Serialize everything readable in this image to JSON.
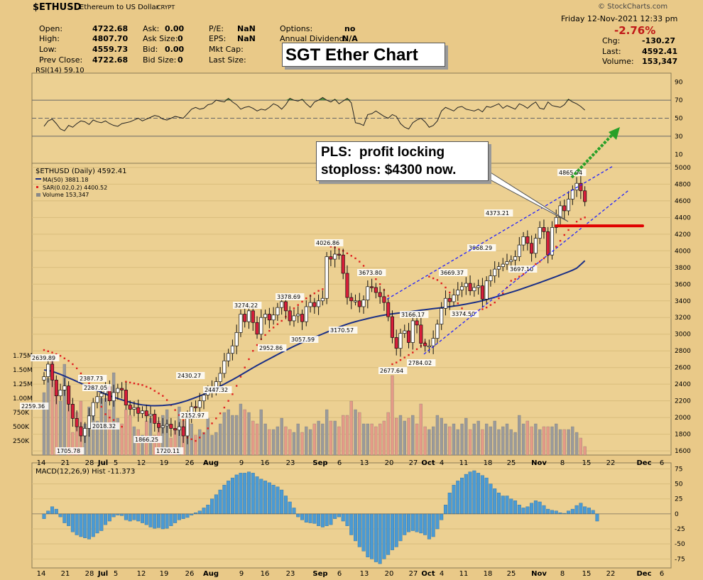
{
  "header": {
    "symbol": "$ETHUSD",
    "name": "Ethereum to US Dollar",
    "exchange": "CRYPT",
    "brand": "© StockCharts.com",
    "date_line": "Friday  12-Nov-2021  12:33 pm",
    "quote": {
      "open_label": "Open:",
      "open": "4722.68",
      "high_label": "High:",
      "high": "4807.70",
      "low_label": "Low:",
      "low": "4559.73",
      "prev_label": "Prev Close:",
      "prev": "4722.68",
      "ask_label": "Ask:",
      "ask": "0.00",
      "asksize_label": "Ask Size:",
      "asksize": "0",
      "bid_label": "Bid:",
      "bid": "0.00",
      "bidsize_label": "Bid Size:",
      "bidsize": "0",
      "pe_label": "P/E:",
      "pe": "NaN",
      "eps_label": "EPS:",
      "eps": "NaN",
      "mktcap_label": "Mkt Cap:",
      "lastsize_label": "Last Size:",
      "options_label": "Options:",
      "options": "no",
      "div_label": "Annual Dividend:",
      "div": "N/A",
      "pct_change": "-2.76%",
      "chg_label": "Chg:",
      "chg": "-130.27",
      "last_label": "Last:",
      "last": "4592.41",
      "vol_label": "Volume:",
      "vol": "153,347"
    }
  },
  "overlay": {
    "title": "SGT Ether Chart",
    "note": "PLS:  profit locking\nstoploss: $4300 now."
  },
  "colors": {
    "background": "#e9c988",
    "up_candle": "#ffffff",
    "down_candle": "#d81e3a",
    "ma": "#1a2f86",
    "sar": "#e02020",
    "volume_up": "#9a9a9a",
    "volume_down": "#e59a87",
    "macd_hist": "#4a9ad4",
    "rsi_fill": "#4f8a38",
    "channel": "#2020ff",
    "target_arrow": "#28a028",
    "stop_line": "#e00000"
  },
  "chart_data": [
    {
      "type": "line",
      "title": "RSI(14) 59.10",
      "yticks": [
        10,
        30,
        50,
        70,
        90
      ],
      "ylim": [
        0,
        100
      ],
      "reference_lines": [
        30,
        50,
        70
      ],
      "series": [
        {
          "name": "RSI(14)",
          "last": 59.1,
          "values": [
            41,
            47,
            49,
            44,
            38,
            36,
            42,
            40,
            44,
            47,
            46,
            43,
            48,
            46,
            45,
            47,
            44,
            42,
            41,
            44,
            45,
            46,
            48,
            50,
            47,
            49,
            51,
            53,
            52,
            49,
            48,
            50,
            52,
            51,
            50,
            55,
            60,
            62,
            60,
            61,
            65,
            66,
            70,
            69,
            68,
            72,
            68,
            65,
            60,
            62,
            63,
            61,
            58,
            60,
            59,
            62,
            66,
            64,
            60,
            65,
            72,
            70,
            69,
            71,
            66,
            62,
            68,
            70,
            73,
            70,
            68,
            71,
            66,
            69,
            72,
            67,
            45,
            44,
            42,
            54,
            55,
            58,
            55,
            52,
            50,
            54,
            52,
            44,
            40,
            38,
            45,
            48,
            50,
            46,
            40,
            42,
            47,
            58,
            62,
            60,
            58,
            62,
            63,
            60,
            59,
            58,
            60,
            57,
            63,
            62,
            64,
            66,
            61,
            64,
            62,
            60,
            66,
            64,
            61,
            65,
            68,
            61,
            60,
            68,
            64,
            63,
            62,
            65,
            71,
            68,
            66,
            63,
            59
          ]
        }
      ]
    },
    {
      "type": "line",
      "title": "$ETHUSD (Daily) 4592.41",
      "x_tick_labels": [
        "14",
        "21",
        "28",
        "Jul",
        "5",
        "12",
        "19",
        "26",
        "Aug",
        "9",
        "16",
        "23",
        "Sep",
        "6",
        "13",
        "20",
        "27",
        "Oct",
        "4",
        "11",
        "18",
        "25",
        "Nov",
        "8",
        "15",
        "22",
        "Dec",
        "6"
      ],
      "yticks": [
        1600,
        1800,
        2000,
        2200,
        2400,
        2600,
        2800,
        3000,
        3200,
        3400,
        3600,
        3800,
        4000,
        4200,
        4400,
        4600,
        4800,
        5000
      ],
      "ylim": [
        1550,
        5050
      ],
      "volume_ticks": [
        "250K",
        "500K",
        "750K",
        "1.00M",
        "1.25M",
        "1.50M",
        "1.75M"
      ],
      "legend": [
        "$ETHUSD (Daily) 4592.41",
        "MA(50) 3881.18",
        "SAR(0.02,0.2) 4400.52",
        "Volume 153,347"
      ],
      "series": [
        {
          "name": "$ETHUSD (Daily) close",
          "values": [
            2490,
            2640,
            2450,
            2260,
            2330,
            2380,
            2160,
            1990,
            1890,
            1780,
            1870,
            2020,
            2180,
            2250,
            2290,
            2370,
            2200,
            2300,
            2350,
            2330,
            2150,
            2100,
            2120,
            2050,
            2080,
            2020,
            2040,
            1930,
            1880,
            1900,
            1920,
            1870,
            1850,
            1890,
            1780,
            1990,
            2130,
            2120,
            2200,
            2270,
            2310,
            2350,
            2430,
            2530,
            2680,
            2770,
            2860,
            3020,
            3240,
            3150,
            3280,
            3140,
            3000,
            3200,
            3240,
            3170,
            3230,
            3320,
            3390,
            3280,
            3160,
            3220,
            3240,
            3150,
            3330,
            3380,
            3330,
            3400,
            3430,
            3930,
            3900,
            3960,
            3950,
            3730,
            3440,
            3400,
            3400,
            3330,
            3410,
            3570,
            3560,
            3500,
            3450,
            3380,
            3210,
            2960,
            2830,
            3010,
            3040,
            2900,
            3160,
            3110,
            2890,
            2860,
            2860,
            2950,
            3120,
            3310,
            3430,
            3390,
            3470,
            3530,
            3570,
            3610,
            3520,
            3560,
            3580,
            3420,
            3640,
            3700,
            3780,
            3810,
            3840,
            3870,
            3890,
            3930,
            4070,
            4170,
            4090,
            3970,
            4150,
            4280,
            4230,
            3950,
            4280,
            4400,
            4540,
            4480,
            4620,
            4730,
            4810,
            4720,
            4590
          ]
        },
        {
          "name": "MA(50)",
          "last": 3881.18,
          "values": [
            2570,
            2566,
            2553,
            2536,
            2518,
            2498,
            2476,
            2455,
            2433,
            2411,
            2388,
            2368,
            2346,
            2324,
            2302,
            2281,
            2262,
            2245,
            2229,
            2213,
            2198,
            2184,
            2171,
            2160,
            2152,
            2147,
            2143,
            2142,
            2143,
            2145,
            2149,
            2154,
            2163,
            2175,
            2189,
            2204,
            2222,
            2240,
            2259,
            2279,
            2302,
            2325,
            2350,
            2376,
            2402,
            2428,
            2454,
            2481,
            2510,
            2539,
            2568,
            2597,
            2625,
            2652,
            2678,
            2704,
            2730,
            2756,
            2782,
            2806,
            2831,
            2855,
            2878,
            2900,
            2921,
            2942,
            2963,
            2983,
            3003,
            3024,
            3044,
            3065,
            3086,
            3104,
            3121,
            3136,
            3150,
            3163,
            3175,
            3187,
            3199,
            3210,
            3220,
            3229,
            3237,
            3244,
            3250,
            3256,
            3262,
            3268,
            3275,
            3281,
            3288,
            3294,
            3300,
            3306,
            3312,
            3318,
            3324,
            3330,
            3337,
            3344,
            3352,
            3361,
            3370,
            3380,
            3390,
            3402,
            3415,
            3429,
            3443,
            3458,
            3473,
            3488,
            3503,
            3518,
            3534,
            3551,
            3568,
            3585,
            3602,
            3619,
            3637,
            3655,
            3673,
            3691,
            3710,
            3729,
            3748,
            3768,
            3791,
            3835,
            3881
          ]
        },
        {
          "name": "SAR(0.02,0.2)",
          "last": 4400.52,
          "values": [
            2810,
            2795,
            2780,
            2760,
            2740,
            2710,
            2680,
            2640,
            2590,
            2530,
            2470,
            2410,
            2350,
            2240,
            2130,
            2040,
            2000,
            1970,
            1930,
            1890,
            2430,
            2420,
            2410,
            2400,
            2390,
            2370,
            2350,
            2320,
            2290,
            2260,
            2210,
            2150,
            2090,
            2030,
            1970,
            1760,
            1740,
            1720,
            1760,
            1810,
            1870,
            1930,
            1990,
            2050,
            2120,
            2200,
            2280,
            2380,
            2490,
            2600,
            2700,
            2800,
            2870,
            2940,
            2990,
            3040,
            3080,
            3120,
            3160,
            3210,
            3260,
            3310,
            3350,
            3390,
            3430,
            3460,
            3490,
            3520,
            3540,
            3560,
            4050,
            4040,
            4020,
            4000,
            3970,
            3940,
            3910,
            3870,
            3820,
            3770,
            3720,
            3660,
            3600,
            3530,
            3460,
            2640,
            2660,
            2690,
            2720,
            2750,
            2780,
            2820,
            2860,
            2900,
            3690,
            3670,
            3650,
            3610,
            3560,
            3500,
            3440,
            3370,
            3310,
            3270,
            3260,
            3270,
            3280,
            3300,
            3320,
            3350,
            3380,
            3430,
            3490,
            3560,
            3640,
            3660,
            3690,
            3720,
            3760,
            3800,
            3840,
            3870,
            3910,
            3950,
            3990,
            4050,
            4120,
            4190,
            4250,
            4300,
            4350,
            4380,
            4400
          ]
        },
        {
          "name": "Volume",
          "last": "153,347",
          "values": [
            1.1,
            1.35,
            1.7,
            1.2,
            0.95,
            1.6,
            1.0,
            0.4,
            0.75,
            0.95,
            0.55,
            0.85,
            0.7,
            0.6,
            1.0,
            1.0,
            0.8,
            1.45,
            0.65,
            0.55,
            0.8,
            0.7,
            0.5,
            0.45,
            0.35,
            0.6,
            0.65,
            0.35,
            0.6,
            0.7,
            0.8,
            0.3,
            0.45,
            0.85,
            0.6,
            0.45,
            0.55,
            0.35,
            0.45,
            0.4,
            0.65,
            0.35,
            0.4,
            0.55,
            0.75,
            0.8,
            0.7,
            0.7,
            0.9,
            0.8,
            0.75,
            0.6,
            0.55,
            0.8,
            0.55,
            0.45,
            0.45,
            0.5,
            0.65,
            0.5,
            0.45,
            0.4,
            0.55,
            0.4,
            0.5,
            0.45,
            0.55,
            0.6,
            0.55,
            0.8,
            0.6,
            0.6,
            0.5,
            0.7,
            0.7,
            0.95,
            0.8,
            0.75,
            0.55,
            0.55,
            0.55,
            0.5,
            0.55,
            0.6,
            0.75,
            1.4,
            0.65,
            0.7,
            0.6,
            0.65,
            0.7,
            0.55,
            0.9,
            0.5,
            0.45,
            0.5,
            0.7,
            0.65,
            0.55,
            0.5,
            0.55,
            0.45,
            0.55,
            0.65,
            0.45,
            0.55,
            0.6,
            0.45,
            0.55,
            0.5,
            0.6,
            0.45,
            0.5,
            0.55,
            0.45,
            0.4,
            0.7,
            0.55,
            0.6,
            0.5,
            0.55,
            0.45,
            0.5,
            0.5,
            0.5,
            0.55,
            0.45,
            0.45,
            0.45,
            0.5,
            0.4,
            0.3,
            0.15
          ]
        }
      ],
      "annotations": [
        "2639.89",
        "2259.36",
        "2387.73",
        "2287.05",
        "2018.32",
        "1705.78",
        "1866.25",
        "1720.11",
        "2430.27",
        "2152.97",
        "2447.32",
        "3274.22",
        "3378.69",
        "2952.86",
        "3057.59",
        "4026.86",
        "3170.57",
        "3673.80",
        "2677.64",
        "3166.17",
        "2784.02",
        "3669.37",
        "3374.50",
        "3968.29",
        "4373.21",
        "3697.10",
        "4865.94"
      ],
      "stop_level": 4300
    },
    {
      "type": "bar",
      "title": "MACD(12,26,9) Hist -11.373",
      "yticks": [
        -75,
        -50,
        -25,
        0,
        25,
        50,
        75
      ],
      "ylim": [
        -90,
        85
      ],
      "series": [
        {
          "name": "MACD Hist",
          "last": -11.373,
          "values": [
            -8,
            5,
            12,
            8,
            -5,
            -15,
            -20,
            -30,
            -35,
            -38,
            -40,
            -42,
            -38,
            -32,
            -28,
            -18,
            -12,
            -5,
            -2,
            -3,
            -10,
            -12,
            -10,
            -12,
            -15,
            -18,
            -22,
            -24,
            -23,
            -25,
            -24,
            -20,
            -15,
            -10,
            -8,
            -6,
            -2,
            2,
            5,
            10,
            15,
            25,
            32,
            40,
            48,
            55,
            60,
            65,
            68,
            68,
            70,
            68,
            62,
            58,
            55,
            52,
            48,
            45,
            40,
            30,
            20,
            10,
            -5,
            -10,
            -14,
            -15,
            -16,
            -20,
            -22,
            -20,
            -18,
            -8,
            -5,
            -12,
            -20,
            -35,
            -45,
            -55,
            -62,
            -72,
            -75,
            -80,
            -83,
            -75,
            -68,
            -60,
            -55,
            -45,
            -35,
            -30,
            -28,
            -30,
            -32,
            -35,
            -42,
            -38,
            -25,
            -10,
            15,
            35,
            48,
            55,
            60,
            66,
            70,
            72,
            68,
            64,
            60,
            50,
            42,
            35,
            30,
            30,
            25,
            22,
            15,
            10,
            12,
            18,
            22,
            20,
            14,
            8,
            6,
            5,
            2,
            1,
            5,
            8,
            14,
            18,
            12,
            10,
            6,
            -12
          ]
        }
      ]
    }
  ]
}
